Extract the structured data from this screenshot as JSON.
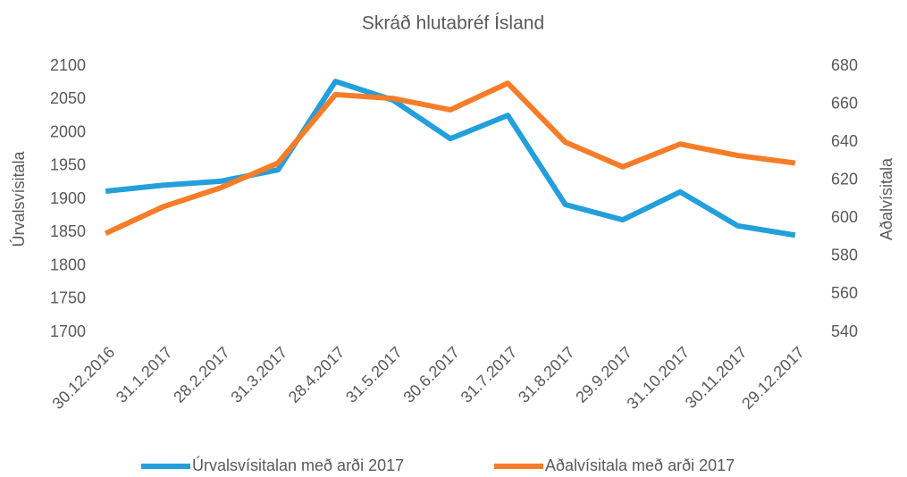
{
  "chart_data": {
    "type": "line",
    "title": "Skráð hlutabréf Ísland",
    "categories": [
      "30.12.2016",
      "31.1.2017",
      "28.2.2017",
      "31.3.2017",
      "28.4.2017",
      "31.5.2017",
      "30.6.2017",
      "31.7.2017",
      "31.8.2017",
      "29.9.2017",
      "31.10.2017",
      "30.11.2017",
      "29.12.2017"
    ],
    "series": [
      {
        "name": "Úrvalsvísitalan með arði 2017",
        "color": "#239fdb",
        "values": [
          1912,
          1921,
          1927,
          1944,
          2077,
          2049,
          1991,
          2026,
          1892,
          1869,
          1911,
          1860,
          1846
        ]
      },
      {
        "name": "Aðalvísitala með arði 2017",
        "color": "#f57d29",
        "axis": "y2",
        "values": [
          592,
          606,
          616,
          629,
          665,
          663,
          657,
          671,
          640,
          627,
          639,
          633,
          629
        ]
      }
    ],
    "y_label": "Úrvalsvísitala",
    "y2_label": "Aðalvísitala",
    "ylim": [
      1700,
      2100
    ],
    "yticks": [
      1700,
      1750,
      1800,
      1850,
      1900,
      1950,
      2000,
      2050,
      2100
    ],
    "y2lim": [
      540,
      680
    ],
    "y2ticks": [
      540,
      560,
      580,
      600,
      620,
      640,
      660,
      680
    ],
    "grid": false,
    "legend": "bottom"
  }
}
